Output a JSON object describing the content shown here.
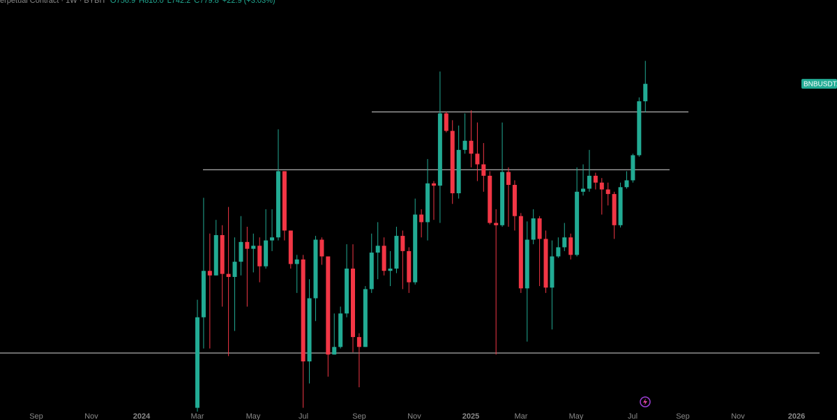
{
  "chart_data": {
    "type": "candlestick",
    "header": {
      "label": "erpetual Contract · 1W · BYBIT",
      "ohlc": [
        "O756.9",
        "H810.0",
        "L742.2",
        "C779.8"
      ],
      "change": "+22.9 (+3.03%)"
    },
    "symbol": "BNBUSDT.",
    "up_color": "#22ab94",
    "down_color": "#f23645",
    "level_color": "#d9d9d9",
    "ylim": [
      349,
      890
    ],
    "xticks": [
      "Sep",
      "Nov",
      "2024",
      "Mar",
      "May",
      "Jul",
      "Sep",
      "Nov",
      "2025",
      "Mar",
      "May",
      "Jul",
      "Sep",
      "Nov",
      "2026"
    ],
    "levels": [
      743,
      667,
      426
    ],
    "open": [
      354,
      473,
      534,
      528,
      581,
      530,
      526,
      546,
      572,
      563,
      567,
      540,
      574,
      578,
      665,
      587,
      543,
      549,
      415,
      498,
      575,
      553,
      424,
      434,
      478,
      537,
      447,
      434,
      510,
      558,
      567,
      534,
      537,
      580,
      560,
      519,
      608,
      598,
      649,
      646,
      741,
      718,
      636,
      693,
      705,
      688,
      674,
      659,
      597,
      594,
      664,
      647,
      606,
      511,
      575,
      603,
      576,
      512,
      553,
      565,
      578,
      555,
      638,
      642,
      659,
      650,
      641,
      635,
      594,
      644,
      653,
      686,
      756.9
    ],
    "high": [
      496,
      630,
      583,
      601,
      594,
      618,
      578,
      606,
      592,
      583,
      578,
      615,
      615,
      720,
      665,
      587,
      555,
      555,
      523,
      580,
      578,
      553,
      478,
      487,
      569,
      569,
      452,
      514,
      583,
      598,
      578,
      560,
      592,
      587,
      565,
      629,
      615,
      681,
      652,
      796,
      743,
      732,
      725,
      741,
      745,
      729,
      702,
      665,
      615,
      729,
      670,
      653,
      610,
      599,
      615,
      606,
      587,
      574,
      578,
      597,
      583,
      670,
      674,
      693,
      663,
      656,
      650,
      638,
      650,
      665,
      688,
      762,
      810
    ],
    "low": [
      349,
      432,
      432,
      528,
      487,
      422,
      455,
      528,
      487,
      532,
      519,
      537,
      560,
      574,
      574,
      537,
      505,
      354,
      386,
      468,
      542,
      395,
      424,
      432,
      473,
      427,
      381,
      434,
      505,
      523,
      528,
      514,
      531,
      510,
      505,
      516,
      578,
      574,
      601,
      597,
      716,
      622,
      629,
      688,
      670,
      652,
      638,
      595,
      424,
      592,
      592,
      587,
      505,
      441,
      569,
      514,
      505,
      457,
      551,
      560,
      549,
      553,
      633,
      638,
      641,
      608,
      620,
      576,
      591,
      642,
      650,
      684,
      742.2
    ],
    "close": [
      473,
      534,
      528,
      581,
      530,
      526,
      546,
      572,
      563,
      567,
      540,
      574,
      578,
      665,
      587,
      543,
      549,
      415,
      498,
      575,
      553,
      424,
      434,
      478,
      537,
      447,
      434,
      510,
      558,
      567,
      534,
      537,
      580,
      560,
      519,
      608,
      598,
      649,
      646,
      741,
      718,
      636,
      693,
      705,
      688,
      674,
      659,
      597,
      594,
      664,
      647,
      606,
      511,
      575,
      603,
      576,
      512,
      553,
      565,
      578,
      555,
      638,
      642,
      659,
      650,
      641,
      635,
      594,
      644,
      653,
      686,
      756.9,
      779.8
    ]
  }
}
